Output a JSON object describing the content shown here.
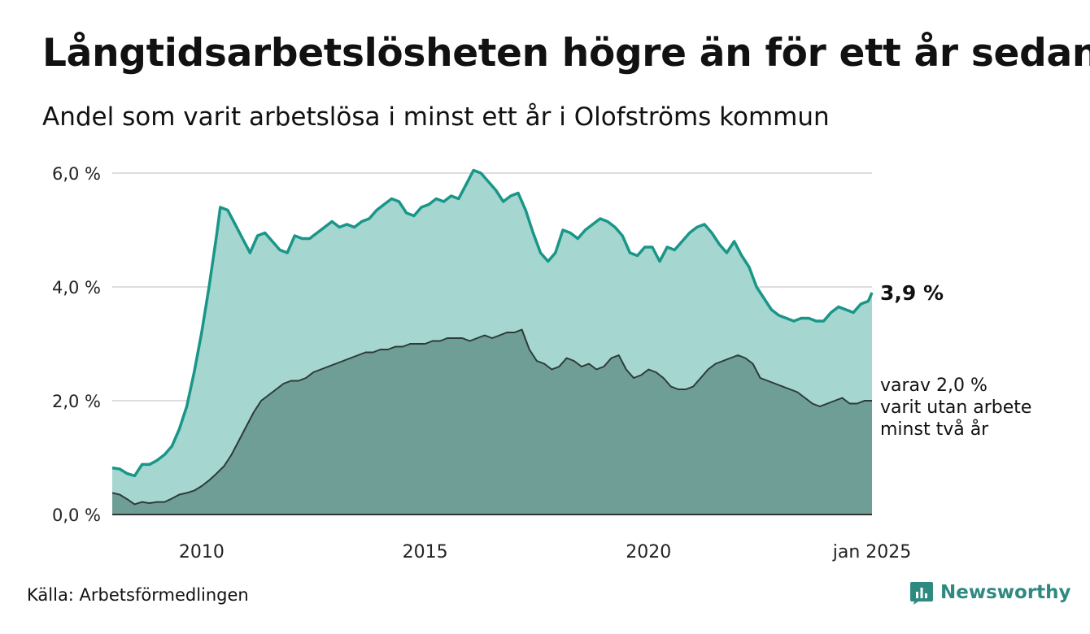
{
  "header": {
    "title": "Långtidsarbetslösheten högre än för ett år sedan",
    "subtitle": "Andel som varit arbetslösa i minst ett år i Olofströms kommun"
  },
  "footer": {
    "source": "Källa: Arbetsförmedlingen",
    "brand": "Newsworthy",
    "brand_icon": "newsworthy-chart-icon"
  },
  "colors": {
    "line_total": "#1a9688",
    "area_total": "#a5d6d0",
    "line_two_year": "#2d3b38",
    "area_two_year": "#6f9e96",
    "grid": "#dddddd",
    "brand": "#2e8a80"
  },
  "chart_data": {
    "type": "area",
    "x_domain": [
      "2008-01",
      "2025-01"
    ],
    "ylim": [
      0,
      6
    ],
    "y_ticks": [
      0,
      2,
      4,
      6
    ],
    "y_tick_labels": [
      "0,0 %",
      "2,0 %",
      "4,0 %",
      "6,0 %"
    ],
    "x_ticks": [
      "2010-01",
      "2015-01",
      "2020-01",
      "2025-01"
    ],
    "x_tick_labels": [
      "2010",
      "2015",
      "2020",
      "jan 2025"
    ],
    "grid": true,
    "series": [
      {
        "key": "total",
        "end_label": "3,9 %",
        "points": [
          [
            "2008-01",
            0.82
          ],
          [
            "2008-03",
            0.8
          ],
          [
            "2008-05",
            0.72
          ],
          [
            "2008-07",
            0.68
          ],
          [
            "2008-09",
            0.88
          ],
          [
            "2008-11",
            0.88
          ],
          [
            "2009-01",
            0.95
          ],
          [
            "2009-03",
            1.05
          ],
          [
            "2009-05",
            1.2
          ],
          [
            "2009-07",
            1.5
          ],
          [
            "2009-09",
            1.9
          ],
          [
            "2009-11",
            2.5
          ],
          [
            "2010-01",
            3.2
          ],
          [
            "2010-03",
            4.0
          ],
          [
            "2010-05",
            4.9
          ],
          [
            "2010-06",
            5.4
          ],
          [
            "2010-08",
            5.35
          ],
          [
            "2010-10",
            5.1
          ],
          [
            "2010-12",
            4.85
          ],
          [
            "2011-02",
            4.6
          ],
          [
            "2011-04",
            4.9
          ],
          [
            "2011-06",
            4.95
          ],
          [
            "2011-08",
            4.8
          ],
          [
            "2011-10",
            4.65
          ],
          [
            "2011-12",
            4.6
          ],
          [
            "2012-02",
            4.9
          ],
          [
            "2012-04",
            4.85
          ],
          [
            "2012-06",
            4.85
          ],
          [
            "2012-08",
            4.95
          ],
          [
            "2012-10",
            5.05
          ],
          [
            "2012-12",
            5.15
          ],
          [
            "2013-02",
            5.05
          ],
          [
            "2013-04",
            5.1
          ],
          [
            "2013-06",
            5.05
          ],
          [
            "2013-08",
            5.15
          ],
          [
            "2013-10",
            5.2
          ],
          [
            "2013-12",
            5.35
          ],
          [
            "2014-02",
            5.45
          ],
          [
            "2014-04",
            5.55
          ],
          [
            "2014-06",
            5.5
          ],
          [
            "2014-08",
            5.3
          ],
          [
            "2014-10",
            5.25
          ],
          [
            "2014-12",
            5.4
          ],
          [
            "2015-02",
            5.45
          ],
          [
            "2015-04",
            5.55
          ],
          [
            "2015-06",
            5.5
          ],
          [
            "2015-08",
            5.6
          ],
          [
            "2015-10",
            5.55
          ],
          [
            "2015-12",
            5.8
          ],
          [
            "2016-02",
            6.05
          ],
          [
            "2016-04",
            6.0
          ],
          [
            "2016-06",
            5.85
          ],
          [
            "2016-08",
            5.7
          ],
          [
            "2016-10",
            5.5
          ],
          [
            "2016-12",
            5.6
          ],
          [
            "2017-02",
            5.65
          ],
          [
            "2017-04",
            5.35
          ],
          [
            "2017-06",
            4.95
          ],
          [
            "2017-08",
            4.6
          ],
          [
            "2017-10",
            4.45
          ],
          [
            "2017-12",
            4.6
          ],
          [
            "2018-02",
            5.0
          ],
          [
            "2018-04",
            4.95
          ],
          [
            "2018-06",
            4.85
          ],
          [
            "2018-08",
            5.0
          ],
          [
            "2018-10",
            5.1
          ],
          [
            "2018-12",
            5.2
          ],
          [
            "2019-02",
            5.15
          ],
          [
            "2019-04",
            5.05
          ],
          [
            "2019-06",
            4.9
          ],
          [
            "2019-08",
            4.6
          ],
          [
            "2019-10",
            4.55
          ],
          [
            "2019-12",
            4.7
          ],
          [
            "2020-02",
            4.7
          ],
          [
            "2020-04",
            4.45
          ],
          [
            "2020-06",
            4.7
          ],
          [
            "2020-08",
            4.65
          ],
          [
            "2020-10",
            4.8
          ],
          [
            "2020-12",
            4.95
          ],
          [
            "2021-02",
            5.05
          ],
          [
            "2021-04",
            5.1
          ],
          [
            "2021-06",
            4.95
          ],
          [
            "2021-08",
            4.75
          ],
          [
            "2021-10",
            4.6
          ],
          [
            "2021-12",
            4.8
          ],
          [
            "2022-02",
            4.55
          ],
          [
            "2022-04",
            4.35
          ],
          [
            "2022-06",
            4.0
          ],
          [
            "2022-08",
            3.8
          ],
          [
            "2022-10",
            3.6
          ],
          [
            "2022-12",
            3.5
          ],
          [
            "2023-02",
            3.45
          ],
          [
            "2023-04",
            3.4
          ],
          [
            "2023-06",
            3.45
          ],
          [
            "2023-08",
            3.45
          ],
          [
            "2023-10",
            3.4
          ],
          [
            "2023-12",
            3.4
          ],
          [
            "2024-02",
            3.55
          ],
          [
            "2024-04",
            3.65
          ],
          [
            "2024-06",
            3.6
          ],
          [
            "2024-08",
            3.55
          ],
          [
            "2024-10",
            3.7
          ],
          [
            "2024-12",
            3.75
          ],
          [
            "2025-01",
            3.9
          ]
        ]
      },
      {
        "key": "two_year",
        "end_label": "varav 2,0 % varit utan arbete minst två år",
        "end_label_lines": [
          "varav 2,0 %",
          "varit utan arbete",
          "minst två år"
        ],
        "points": [
          [
            "2008-01",
            0.38
          ],
          [
            "2008-03",
            0.35
          ],
          [
            "2008-05",
            0.27
          ],
          [
            "2008-07",
            0.18
          ],
          [
            "2008-09",
            0.22
          ],
          [
            "2008-11",
            0.2
          ],
          [
            "2009-01",
            0.22
          ],
          [
            "2009-03",
            0.22
          ],
          [
            "2009-05",
            0.28
          ],
          [
            "2009-07",
            0.35
          ],
          [
            "2009-09",
            0.38
          ],
          [
            "2009-11",
            0.42
          ],
          [
            "2010-01",
            0.5
          ],
          [
            "2010-03",
            0.6
          ],
          [
            "2010-05",
            0.72
          ],
          [
            "2010-07",
            0.85
          ],
          [
            "2010-09",
            1.05
          ],
          [
            "2010-11",
            1.3
          ],
          [
            "2011-01",
            1.55
          ],
          [
            "2011-03",
            1.8
          ],
          [
            "2011-05",
            2.0
          ],
          [
            "2011-07",
            2.1
          ],
          [
            "2011-09",
            2.2
          ],
          [
            "2011-11",
            2.3
          ],
          [
            "2012-01",
            2.35
          ],
          [
            "2012-03",
            2.35
          ],
          [
            "2012-05",
            2.4
          ],
          [
            "2012-07",
            2.5
          ],
          [
            "2012-09",
            2.55
          ],
          [
            "2012-11",
            2.6
          ],
          [
            "2013-01",
            2.65
          ],
          [
            "2013-03",
            2.7
          ],
          [
            "2013-05",
            2.75
          ],
          [
            "2013-07",
            2.8
          ],
          [
            "2013-09",
            2.85
          ],
          [
            "2013-11",
            2.85
          ],
          [
            "2014-01",
            2.9
          ],
          [
            "2014-03",
            2.9
          ],
          [
            "2014-05",
            2.95
          ],
          [
            "2014-07",
            2.95
          ],
          [
            "2014-09",
            3.0
          ],
          [
            "2014-11",
            3.0
          ],
          [
            "2015-01",
            3.0
          ],
          [
            "2015-03",
            3.05
          ],
          [
            "2015-05",
            3.05
          ],
          [
            "2015-07",
            3.1
          ],
          [
            "2015-09",
            3.1
          ],
          [
            "2015-11",
            3.1
          ],
          [
            "2016-01",
            3.05
          ],
          [
            "2016-03",
            3.1
          ],
          [
            "2016-05",
            3.15
          ],
          [
            "2016-07",
            3.1
          ],
          [
            "2016-09",
            3.15
          ],
          [
            "2016-11",
            3.2
          ],
          [
            "2017-01",
            3.2
          ],
          [
            "2017-03",
            3.25
          ],
          [
            "2017-05",
            2.9
          ],
          [
            "2017-07",
            2.7
          ],
          [
            "2017-09",
            2.65
          ],
          [
            "2017-11",
            2.55
          ],
          [
            "2018-01",
            2.6
          ],
          [
            "2018-03",
            2.75
          ],
          [
            "2018-05",
            2.7
          ],
          [
            "2018-07",
            2.6
          ],
          [
            "2018-09",
            2.65
          ],
          [
            "2018-11",
            2.55
          ],
          [
            "2019-01",
            2.6
          ],
          [
            "2019-03",
            2.75
          ],
          [
            "2019-05",
            2.8
          ],
          [
            "2019-07",
            2.55
          ],
          [
            "2019-09",
            2.4
          ],
          [
            "2019-11",
            2.45
          ],
          [
            "2020-01",
            2.55
          ],
          [
            "2020-03",
            2.5
          ],
          [
            "2020-05",
            2.4
          ],
          [
            "2020-07",
            2.25
          ],
          [
            "2020-09",
            2.2
          ],
          [
            "2020-11",
            2.2
          ],
          [
            "2021-01",
            2.25
          ],
          [
            "2021-03",
            2.4
          ],
          [
            "2021-05",
            2.55
          ],
          [
            "2021-07",
            2.65
          ],
          [
            "2021-09",
            2.7
          ],
          [
            "2021-11",
            2.75
          ],
          [
            "2022-01",
            2.8
          ],
          [
            "2022-03",
            2.75
          ],
          [
            "2022-05",
            2.65
          ],
          [
            "2022-07",
            2.4
          ],
          [
            "2022-09",
            2.35
          ],
          [
            "2022-11",
            2.3
          ],
          [
            "2023-01",
            2.25
          ],
          [
            "2023-03",
            2.2
          ],
          [
            "2023-05",
            2.15
          ],
          [
            "2023-07",
            2.05
          ],
          [
            "2023-09",
            1.95
          ],
          [
            "2023-11",
            1.9
          ],
          [
            "2024-01",
            1.95
          ],
          [
            "2024-03",
            2.0
          ],
          [
            "2024-05",
            2.05
          ],
          [
            "2024-07",
            1.95
          ],
          [
            "2024-09",
            1.95
          ],
          [
            "2024-11",
            2.0
          ],
          [
            "2025-01",
            2.0
          ]
        ]
      }
    ]
  }
}
